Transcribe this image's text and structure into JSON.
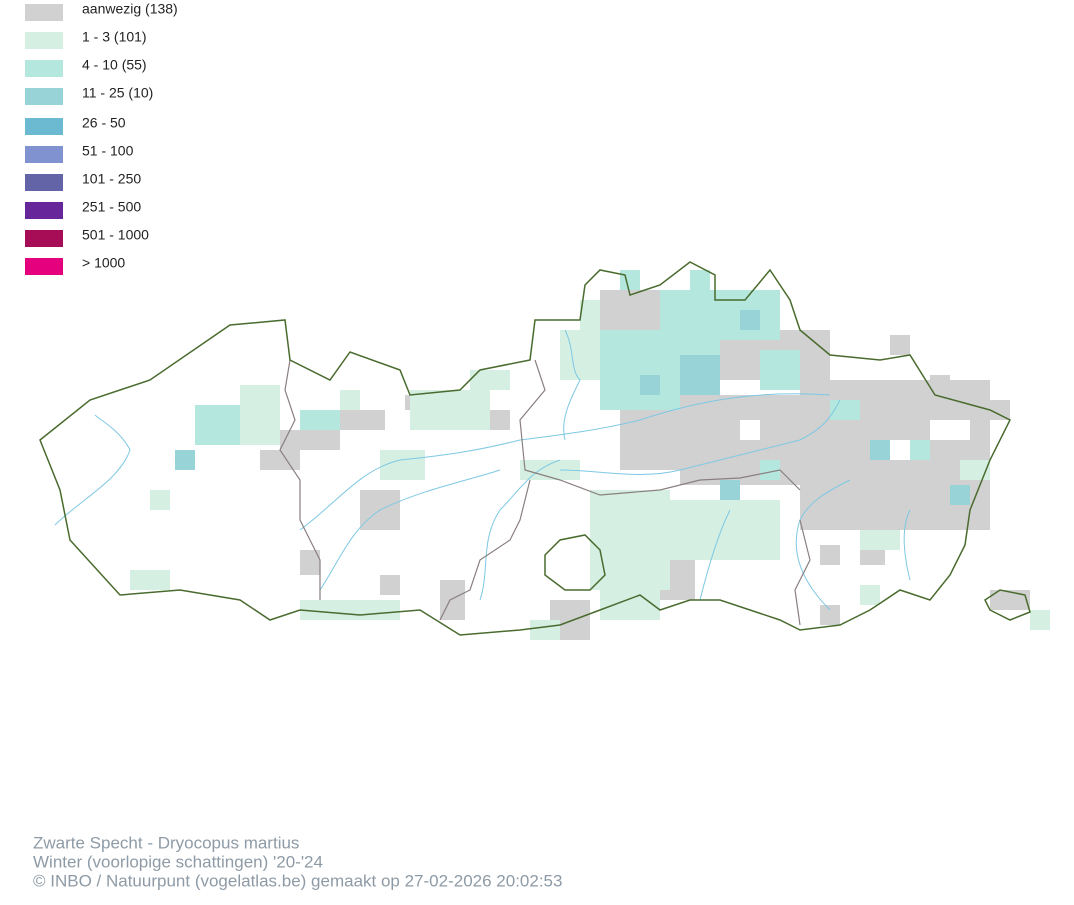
{
  "legend": [
    {
      "label": "aanwezig (138)",
      "color": "#d1d1d1"
    },
    {
      "label": "1 - 3 (101)",
      "color": "#d5f0e3"
    },
    {
      "label": "4 - 10 (55)",
      "color": "#b4e8df"
    },
    {
      "label": "11 - 25 (10)",
      "color": "#97d3d7"
    },
    {
      "label": "26 - 50",
      "color": "#6cbad1"
    },
    {
      "label": "51 - 100",
      "color": "#8192d1"
    },
    {
      "label": "101 - 250",
      "color": "#6363a8"
    },
    {
      "label": "251 - 500",
      "color": "#67279a"
    },
    {
      "label": "501 - 1000",
      "color": "#a70c57"
    },
    {
      "label": "> 1000",
      "color": "#e5007d"
    }
  ],
  "footer": [
    "Zwarte Specht - Dryocopus martius",
    "Winter (voorlopige schattingen) '20-'24",
    "© INBO / Natuurpunt (vogelatlas.be) gemaakt op 27-02-2026 20:02:53"
  ]
}
